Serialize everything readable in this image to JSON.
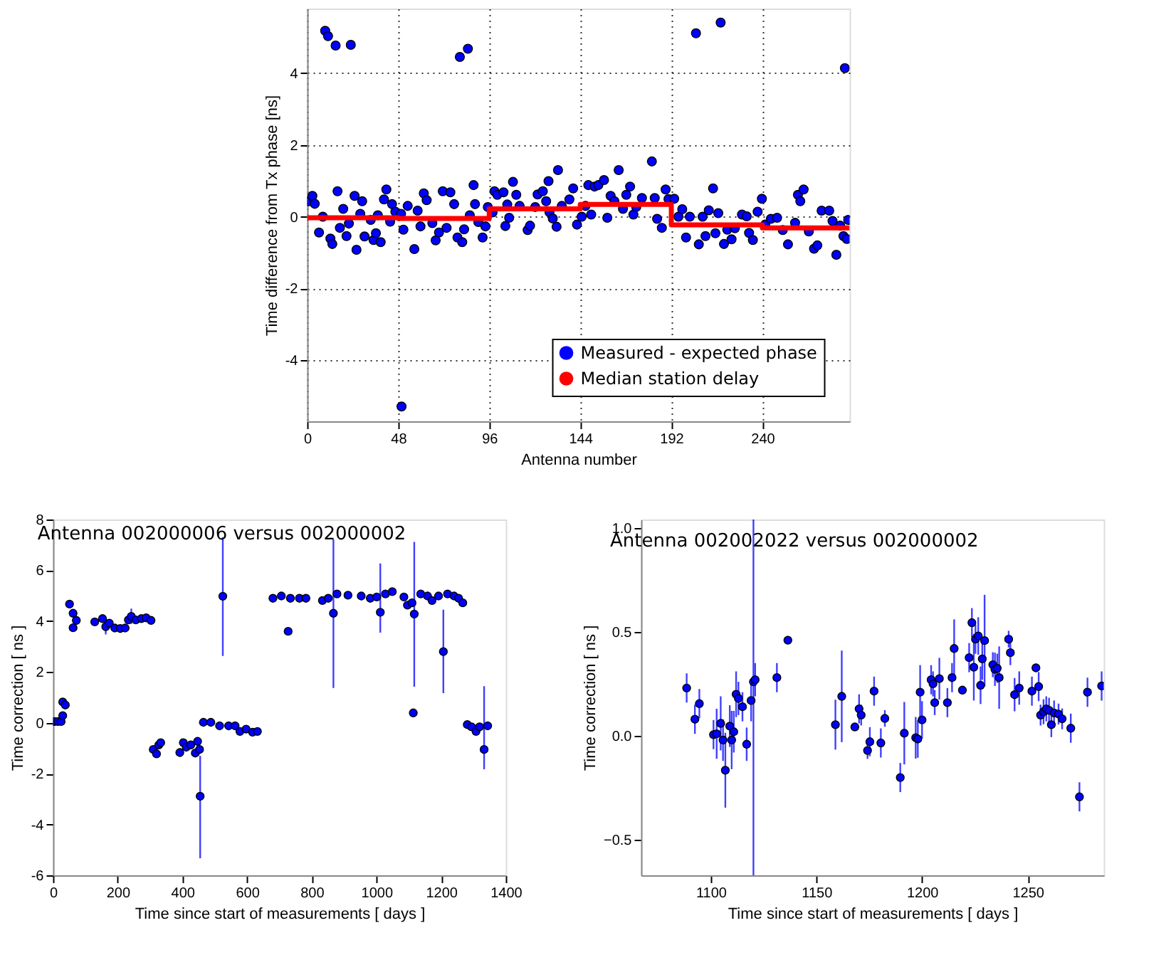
{
  "chart_data": [
    {
      "type": "scatter",
      "xlabel": "Antenna number",
      "ylabel": "Time difference from Tx phase [ns]",
      "xlim": [
        0,
        286
      ],
      "ylim": [
        -5.7,
        5.8
      ],
      "xticks": [
        0,
        48,
        96,
        144,
        192,
        240
      ],
      "yticks": [
        -4,
        -2,
        0,
        2,
        4
      ],
      "grid": true,
      "legend": "bottom right",
      "marker": "circle",
      "series": [
        {
          "name": "Measured - expected phase",
          "type": "scatter",
          "color": "#0000ff",
          "x": [
            9.5,
            11,
            15,
            23,
            80.5,
            84.75,
            205,
            218,
            283.5,
            49.75,
            0.75,
            2.75,
            4,
            6.25,
            8.25,
            12.25,
            13.25,
            16,
            17.25,
            19,
            20.75,
            22,
            25,
            26,
            28,
            29,
            30.25,
            33.5,
            35,
            36.25,
            37.25,
            38.75,
            40.5,
            41.75,
            43.75,
            44.75,
            46.5,
            49.5,
            50.75,
            53,
            56.5,
            58.25,
            59.75,
            61.5,
            63,
            66,
            67.75,
            69.5,
            71.5,
            73.5,
            75.5,
            77.5,
            79.25,
            81.75,
            82.75,
            85.75,
            87.75,
            88.5,
            90.25,
            92.5,
            94,
            95.25,
            97.75,
            98.75,
            100.25,
            103.5,
            104.5,
            105.5,
            106.5,
            108.5,
            110.25,
            112,
            116.25,
            117.5,
            120.25,
            121.5,
            124.25,
            126,
            127.25,
            127.75,
            129.5,
            131.5,
            132.25,
            134.25,
            138.25,
            140.25,
            142.25,
            144.75,
            146.75,
            148.25,
            149.75,
            151.5,
            153.5,
            156.5,
            158.25,
            160,
            162,
            164.25,
            166.5,
            168.25,
            170.25,
            172,
            173.5,
            176.5,
            181.75,
            183.25,
            184.5,
            187,
            189,
            190.5,
            193.5,
            195.75,
            197.75,
            199.75,
            201.75,
            206.5,
            208.5,
            210,
            211.75,
            214,
            215.25,
            216.75,
            219.75,
            221.5,
            223.75,
            225.5,
            229.25,
            231.75,
            233,
            235,
            237.5,
            239.75,
            241.5,
            244.5,
            247.75,
            250.75,
            253.5,
            257.25,
            258.75,
            260,
            261.75,
            264.5,
            267.25,
            269,
            271.25,
            275.25,
            277,
            279,
            281,
            282.75,
            284.5,
            285.25
          ],
          "values": [
            5.18,
            5.03,
            4.77,
            4.79,
            4.45,
            4.68,
            5.11,
            5.41,
            4.14,
            -5.29,
            0.43,
            0.58,
            0.36,
            -0.44,
            0,
            -0.61,
            -0.76,
            0.71,
            -0.31,
            0.22,
            -0.54,
            -0.19,
            0.58,
            -0.92,
            0.08,
            0.43,
            -0.55,
            -0.09,
            -0.65,
            -0.46,
            0.04,
            -0.71,
            0.48,
            0.76,
            -0.14,
            0.35,
            0.14,
            0.08,
            -0.36,
            0.3,
            -0.9,
            0.17,
            -0.27,
            0.65,
            0.46,
            -0.18,
            -0.66,
            -0.44,
            0.71,
            -0.31,
            0.68,
            0.35,
            -0.58,
            -0.71,
            -0.35,
            0.04,
            0.88,
            0.35,
            -0.15,
            -0.58,
            -0.27,
            0.27,
            0.12,
            0.71,
            0.61,
            0.68,
            -0.26,
            0.34,
            -0.03,
            0.97,
            0.61,
            0.3,
            -0.37,
            -0.25,
            0.27,
            0.62,
            0.71,
            0.43,
            0.99,
            0.13,
            -0.05,
            -0.28,
            1.3,
            0.3,
            0.48,
            0.79,
            -0.22,
            0,
            0.3,
            0.88,
            0.06,
            0.84,
            0.88,
            1.02,
            -0.03,
            0.58,
            0.43,
            1.3,
            0.22,
            0.61,
            0.84,
            0.06,
            0.27,
            0.52,
            1.54,
            0.52,
            -0.06,
            -0.31,
            0.76,
            0.49,
            0.5,
            0,
            0.21,
            -0.58,
            0,
            -0.77,
            0,
            -0.54,
            0.18,
            0.79,
            -0.46,
            0.1,
            -0.76,
            -0.36,
            -0.63,
            -0.32,
            0.06,
            0.01,
            -0.45,
            -0.65,
            0.14,
            0.5,
            -0.22,
            -0.06,
            -0.03,
            -0.37,
            -0.77,
            -0.17,
            0.61,
            0.43,
            0.76,
            -0.41,
            -0.89,
            -0.8,
            0.17,
            0.17,
            -0.12,
            -1.06,
            -0.25,
            -0.54,
            -0.62,
            -0.09
          ]
        },
        {
          "name": "Median station delay",
          "type": "step",
          "marker": "none",
          "color": "#ff0000",
          "x": [
            0,
            48,
            96,
            144,
            192,
            240,
            286
          ],
          "values": [
            -0.03,
            -0.05,
            0.22,
            0.34,
            -0.23,
            -0.31,
            -0.31
          ]
        }
      ]
    },
    {
      "type": "scatter",
      "title": "Antenna 002000006 versus 002000002",
      "xlabel": "Time since start of measurements [ days ]",
      "ylabel": "Time correction [ ns ]",
      "xlim": [
        0,
        1400
      ],
      "ylim": [
        -6,
        8
      ],
      "xticks": [
        0,
        200,
        400,
        600,
        800,
        1000,
        1200,
        1400
      ],
      "yticks": [
        -6,
        -4,
        -2,
        0,
        2,
        4,
        6,
        8
      ],
      "marker": "circle",
      "series": [
        {
          "color": "#0000ff",
          "x": [
            5,
            15,
            25,
            30,
            30,
            38,
            51,
            62,
            62,
            72,
            129,
            153,
            163,
            174,
            191,
            208,
            223,
            233,
            242,
            256,
            273,
            288,
            303,
            310,
            320,
            327,
            333,
            392,
            403,
            412,
            426,
            440,
            447,
            453,
            455,
            465,
            488,
            515,
            525,
            543,
            563,
            578,
            597,
            617,
            632,
            680,
            706,
            727,
            734,
            762,
            782,
            833,
            851,
            867,
            878,
            912,
            953,
            981,
            1001,
            1012,
            1028,
            1049,
            1085,
            1096,
            1110,
            1117,
            1114,
            1137,
            1158,
            1172,
            1192,
            1207,
            1220,
            1240,
            1254,
            1267,
            1281,
            1294,
            1308,
            1319,
            1333,
            1344
          ],
          "values": [
            0.05,
            0.05,
            0.05,
            0.28,
            0.82,
            0.7,
            4.67,
            4.31,
            3.74,
            4.03,
            3.97,
            4.1,
            3.78,
            3.92,
            3.73,
            3.71,
            3.73,
            4.05,
            4.19,
            4.05,
            4.1,
            4.13,
            4.03,
            -1.05,
            -1.22,
            -0.87,
            -0.78,
            -1.17,
            -0.78,
            -0.96,
            -0.87,
            -1.19,
            -0.73,
            -1.05,
            -2.89,
            0.02,
            0.02,
            -0.12,
            4.98,
            -0.12,
            -0.12,
            -0.34,
            -0.25,
            -0.37,
            -0.34,
            4.9,
            4.99,
            3.6,
            4.9,
            4.9,
            4.9,
            4.81,
            4.9,
            4.31,
            5.07,
            5.02,
            4.99,
            4.9,
            4.95,
            4.35,
            5.07,
            5.16,
            4.95,
            4.63,
            4.72,
            4.28,
            0.39,
            5.07,
            4.99,
            4.81,
            4.99,
            2.8,
            5.07,
            4.99,
            4.9,
            4.72,
            -0.07,
            -0.16,
            -0.34,
            -0.16,
            -1.05,
            -0.12
          ],
          "errors": [
            0.15,
            0.15,
            0.15,
            0.15,
            0.15,
            0.15,
            0.15,
            0.15,
            0.15,
            0.15,
            0.15,
            0.15,
            0.3,
            0.15,
            0.15,
            0.15,
            0.15,
            0.15,
            0.3,
            0.15,
            0.15,
            0.15,
            0.15,
            0.15,
            0.15,
            0.15,
            0.15,
            0.15,
            0.15,
            0.15,
            0.15,
            0.15,
            0.15,
            0.15,
            [
              -5.33,
              -1.3
            ],
            0.15,
            0.15,
            0.15,
            [
              2.63,
              7.3
            ],
            0.15,
            0.15,
            0.15,
            0.15,
            0.15,
            0.15,
            0.15,
            0.15,
            0.15,
            0.15,
            0.15,
            0.15,
            0.15,
            0.15,
            [
              1.37,
              7.22
            ],
            0.15,
            0.15,
            0.15,
            0.15,
            0.15,
            [
              3.55,
              6.27
            ],
            0.15,
            0.15,
            0.15,
            0.15,
            0.15,
            [
              1.42,
              7.12
            ],
            0.15,
            0.15,
            0.15,
            0.15,
            0.15,
            [
              1.17,
              4.45
            ],
            0.15,
            0.15,
            0.15,
            0.15,
            0.15,
            0.15,
            0.15,
            0.15,
            [
              -1.83,
              1.44
            ],
            0.15
          ]
        }
      ]
    },
    {
      "type": "scatter",
      "title": "Antenna 002002022 versus 002000002",
      "xlabel": "Time since start of measurements [ days ]",
      "ylabel": "Time correction [ ns ]",
      "xlim": [
        1067,
        1286
      ],
      "ylim": [
        -0.67,
        1.04
      ],
      "xticks": [
        1100,
        1150,
        1200,
        1250
      ],
      "yticks": [
        {
          "value": -0.5,
          "label": "−0.5"
        },
        {
          "value": 0,
          "label": "0.0"
        },
        {
          "value": 0.5,
          "label": "0.5"
        },
        {
          "value": 1,
          "label": "1.0"
        }
      ],
      "marker": "circle",
      "series": [
        {
          "color": "#0000ff",
          "x": [
            1088.6,
            1092.5,
            1094.6,
            1101.3,
            1102.8,
            1104.7,
            1105.8,
            1106.9,
            1109,
            1109.9,
            1110.9,
            1112,
            1113.1,
            1115,
            1117,
            1119.1,
            1120.2,
            1121,
            1131.3,
            1136.5,
            1159,
            1162,
            1168.2,
            1170.2,
            1171.2,
            1174.2,
            1175.3,
            1177.3,
            1180.5,
            1182.4,
            1189.7,
            1191.6,
            1197,
            1198,
            1199.1,
            1200,
            1204.3,
            1205.2,
            1206,
            1208.2,
            1212,
            1214.2,
            1215.2,
            1219.1,
            1222.3,
            1223.6,
            1224.5,
            1225.3,
            1226.6,
            1227.7,
            1228.5,
            1229.6,
            1233.5,
            1234.5,
            1235.6,
            1236.5,
            1241,
            1241.8,
            1243.8,
            1246,
            1252,
            1253.9,
            1255.2,
            1256.1,
            1257.5,
            1258.8,
            1260.1,
            1261.2,
            1262.5,
            1264.6,
            1266.3,
            1270.4,
            1274.5,
            1278.3,
            1285
          ],
          "values": [
            0.23,
            0.08,
            0.155,
            0.006,
            0.01,
            0.06,
            -0.02,
            -0.165,
            0.047,
            -0.02,
            0.02,
            0.2,
            0.18,
            0.14,
            -0.04,
            0.17,
            0.26,
            0.27,
            0.28,
            0.46,
            0.054,
            0.19,
            0.043,
            0.13,
            0.1,
            -0.07,
            -0.028,
            0.215,
            -0.034,
            0.084,
            -0.2,
            0.013,
            -0.009,
            -0.015,
            0.21,
            0.077,
            0.27,
            0.25,
            0.16,
            0.275,
            0.16,
            0.28,
            0.42,
            0.22,
            0.376,
            0.544,
            0.33,
            0.465,
            0.48,
            0.243,
            0.37,
            0.458,
            0.342,
            0.32,
            0.325,
            0.28,
            0.465,
            0.4,
            0.198,
            0.23,
            0.215,
            0.327,
            0.237,
            0.1,
            0.116,
            0.13,
            0.123,
            0.054,
            0.11,
            0.105,
            0.082,
            0.037,
            -0.293,
            0.21,
            0.24
          ],
          "errors": [
            0.07,
            0.07,
            0.07,
            0.07,
            0.12,
            0.13,
            0.1,
            0.18,
            0.1,
            0.14,
            0.1,
            0.11,
            0.08,
            0.07,
            0.08,
            0.1,
            [
              -0.67,
              1.04
            ],
            0.08,
            0.07,
            0.02,
            0.12,
            0.22,
            0.01,
            0.07,
            0.05,
            0.04,
            0.07,
            0.07,
            0.07,
            0.04,
            0.07,
            0.15,
            0.1,
            0.09,
            0.13,
            0.09,
            0.07,
            0.06,
            0.06,
            0.1,
            0.07,
            0.07,
            0.14,
            0.01,
            0.07,
            0.07,
            0.16,
            0.07,
            0.09,
            0.09,
            0.1,
            0.22,
            0.06,
            0.08,
            0.07,
            0.15,
            0.04,
            0.06,
            0.08,
            0.08,
            0.07,
            0.02,
            0.07,
            0.05,
            0.06,
            0.06,
            0.06,
            0.06,
            0.06,
            0.05,
            0.05,
            0.07,
            0.07,
            0.07,
            0.07
          ]
        }
      ]
    }
  ]
}
